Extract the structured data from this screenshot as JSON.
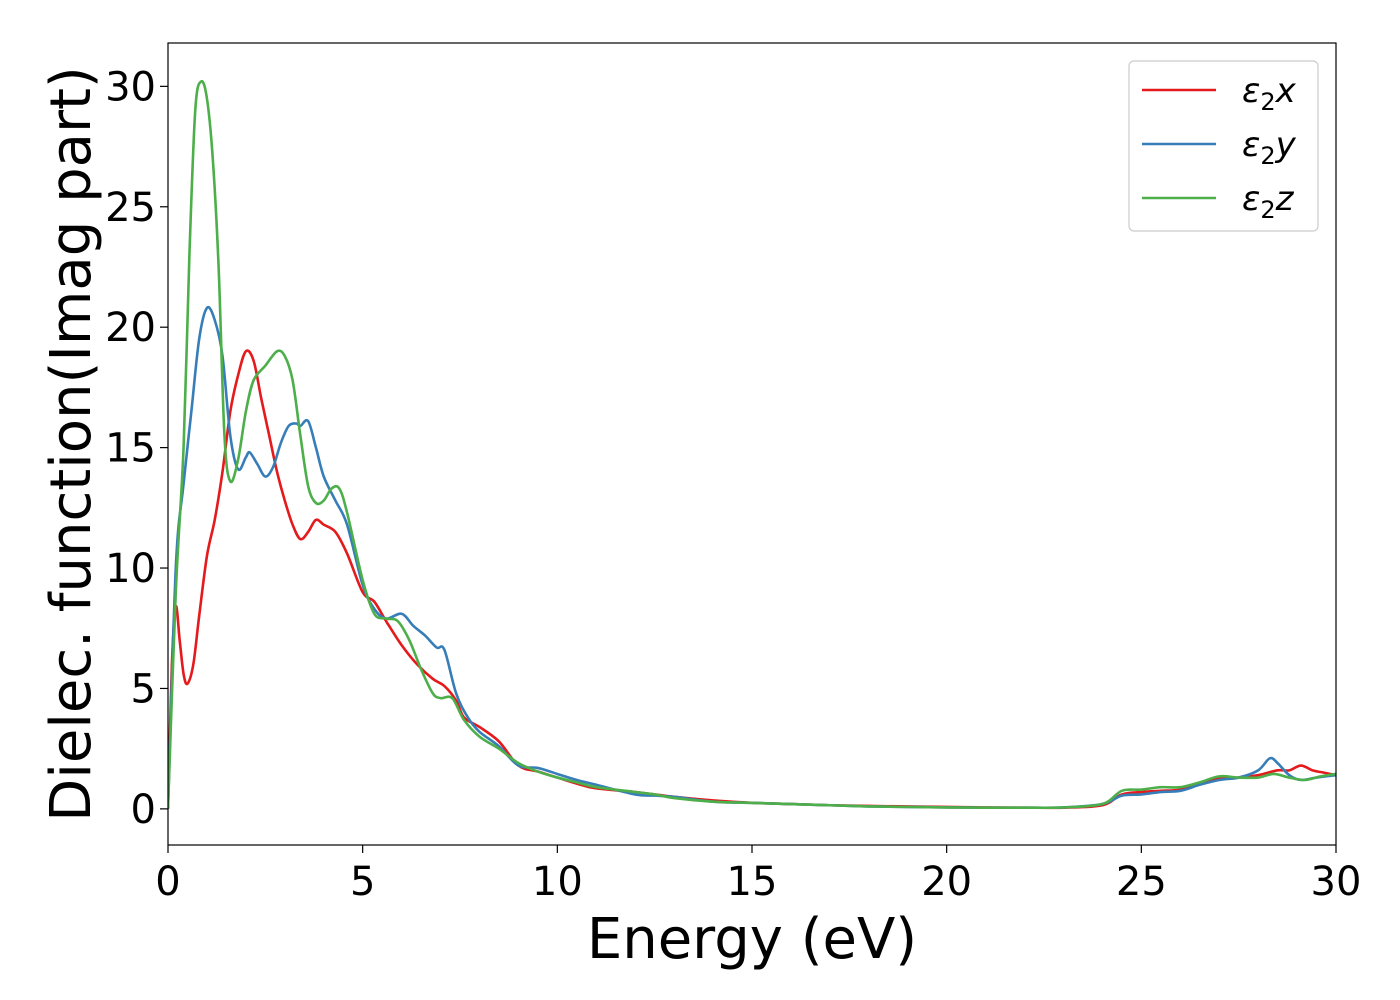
{
  "chart_data": {
    "type": "line",
    "title": "",
    "xlabel": "Energy (eV)",
    "ylabel": "Dielec. function(Imag part)",
    "xlim": [
      0,
      30
    ],
    "ylim": [
      -1.5,
      31.8
    ],
    "xticks": [
      0,
      5,
      10,
      15,
      20,
      25,
      30
    ],
    "yticks": [
      0,
      5,
      10,
      15,
      20,
      25,
      30
    ],
    "grid": false,
    "legend_position": "top-right",
    "series": [
      {
        "name": "ε2x",
        "legend_base": "ε",
        "legend_sub": "2",
        "legend_var": "x",
        "color": "#e41a1c",
        "points": [
          [
            0,
            0
          ],
          [
            0.1,
            6
          ],
          [
            0.2,
            8.4
          ],
          [
            0.3,
            7
          ],
          [
            0.4,
            5.6
          ],
          [
            0.5,
            5.2
          ],
          [
            0.65,
            6
          ],
          [
            0.8,
            8
          ],
          [
            1.0,
            10.5
          ],
          [
            1.2,
            12
          ],
          [
            1.4,
            14
          ],
          [
            1.6,
            16.5
          ],
          [
            1.8,
            18
          ],
          [
            2.0,
            19
          ],
          [
            2.2,
            18.6
          ],
          [
            2.4,
            17
          ],
          [
            2.6,
            15.5
          ],
          [
            2.8,
            14
          ],
          [
            3.0,
            12.8
          ],
          [
            3.2,
            11.8
          ],
          [
            3.4,
            11.2
          ],
          [
            3.6,
            11.5
          ],
          [
            3.8,
            12
          ],
          [
            4.0,
            11.8
          ],
          [
            4.3,
            11.5
          ],
          [
            4.6,
            10.6
          ],
          [
            5.0,
            9
          ],
          [
            5.3,
            8.6
          ],
          [
            5.6,
            7.8
          ],
          [
            6.0,
            6.8
          ],
          [
            6.4,
            6
          ],
          [
            6.8,
            5.4
          ],
          [
            7.1,
            5.1
          ],
          [
            7.4,
            4.5
          ],
          [
            7.6,
            3.8
          ],
          [
            8.0,
            3.4
          ],
          [
            8.5,
            2.8
          ],
          [
            9.0,
            1.8
          ],
          [
            9.5,
            1.55
          ],
          [
            10,
            1.3
          ],
          [
            10.5,
            1.05
          ],
          [
            11,
            0.85
          ],
          [
            12,
            0.7
          ],
          [
            13,
            0.5
          ],
          [
            14,
            0.35
          ],
          [
            15,
            0.25
          ],
          [
            16,
            0.2
          ],
          [
            17,
            0.15
          ],
          [
            18,
            0.12
          ],
          [
            19,
            0.1
          ],
          [
            20,
            0.08
          ],
          [
            21,
            0.06
          ],
          [
            22,
            0.05
          ],
          [
            23,
            0.05
          ],
          [
            24,
            0.15
          ],
          [
            24.5,
            0.6
          ],
          [
            25,
            0.7
          ],
          [
            25.5,
            0.75
          ],
          [
            26,
            0.8
          ],
          [
            26.5,
            1.05
          ],
          [
            27,
            1.3
          ],
          [
            27.5,
            1.3
          ],
          [
            28,
            1.4
          ],
          [
            28.5,
            1.6
          ],
          [
            28.8,
            1.6
          ],
          [
            29.1,
            1.8
          ],
          [
            29.4,
            1.6
          ],
          [
            29.7,
            1.5
          ],
          [
            30,
            1.4
          ]
        ]
      },
      {
        "name": "ε2y",
        "legend_base": "ε",
        "legend_sub": "2",
        "legend_var": "y",
        "color": "#377eb8",
        "points": [
          [
            0,
            0
          ],
          [
            0.2,
            10
          ],
          [
            0.4,
            13.5
          ],
          [
            0.6,
            16.5
          ],
          [
            0.8,
            19.5
          ],
          [
            1.0,
            20.8
          ],
          [
            1.2,
            20.3
          ],
          [
            1.4,
            18.8
          ],
          [
            1.6,
            15.5
          ],
          [
            1.8,
            14.1
          ],
          [
            2.0,
            14.6
          ],
          [
            2.1,
            14.8
          ],
          [
            2.3,
            14.3
          ],
          [
            2.5,
            13.8
          ],
          [
            2.7,
            14.2
          ],
          [
            2.9,
            15.2
          ],
          [
            3.1,
            15.9
          ],
          [
            3.3,
            16
          ],
          [
            3.4,
            15.9
          ],
          [
            3.6,
            16.1
          ],
          [
            3.8,
            15
          ],
          [
            4.0,
            13.8
          ],
          [
            4.3,
            12.8
          ],
          [
            4.6,
            11.8
          ],
          [
            5.0,
            9.3
          ],
          [
            5.3,
            8.3
          ],
          [
            5.6,
            7.9
          ],
          [
            6.0,
            8.1
          ],
          [
            6.3,
            7.6
          ],
          [
            6.6,
            7.2
          ],
          [
            6.9,
            6.7
          ],
          [
            7.1,
            6.6
          ],
          [
            7.4,
            4.8
          ],
          [
            7.7,
            3.8
          ],
          [
            8.0,
            3.2
          ],
          [
            8.5,
            2.6
          ],
          [
            9.0,
            1.8
          ],
          [
            9.5,
            1.7
          ],
          [
            10,
            1.45
          ],
          [
            10.5,
            1.2
          ],
          [
            11,
            1
          ],
          [
            12,
            0.6
          ],
          [
            12.5,
            0.55
          ],
          [
            13,
            0.5
          ],
          [
            14,
            0.3
          ],
          [
            15,
            0.25
          ],
          [
            16,
            0.2
          ],
          [
            17,
            0.15
          ],
          [
            18,
            0.1
          ],
          [
            19,
            0.08
          ],
          [
            20,
            0.06
          ],
          [
            21,
            0.05
          ],
          [
            22,
            0.05
          ],
          [
            23,
            0.06
          ],
          [
            24,
            0.2
          ],
          [
            24.5,
            0.55
          ],
          [
            25,
            0.6
          ],
          [
            25.5,
            0.7
          ],
          [
            26,
            0.75
          ],
          [
            26.5,
            1
          ],
          [
            27,
            1.2
          ],
          [
            27.5,
            1.3
          ],
          [
            28,
            1.6
          ],
          [
            28.3,
            2.1
          ],
          [
            28.5,
            1.9
          ],
          [
            28.8,
            1.4
          ],
          [
            29.1,
            1.2
          ],
          [
            29.5,
            1.3
          ],
          [
            30,
            1.4
          ]
        ]
      },
      {
        "name": "ε2z",
        "legend_base": "ε",
        "legend_sub": "2",
        "legend_var": "z",
        "color": "#4daf4a",
        "points": [
          [
            0,
            0
          ],
          [
            0.2,
            9
          ],
          [
            0.4,
            15
          ],
          [
            0.55,
            23
          ],
          [
            0.7,
            29
          ],
          [
            0.85,
            30.2
          ],
          [
            1.0,
            29.5
          ],
          [
            1.15,
            27
          ],
          [
            1.3,
            22.5
          ],
          [
            1.45,
            15.5
          ],
          [
            1.6,
            13.6
          ],
          [
            1.8,
            14.5
          ],
          [
            2.0,
            16.5
          ],
          [
            2.2,
            17.8
          ],
          [
            2.5,
            18.4
          ],
          [
            2.8,
            19
          ],
          [
            3.0,
            18.8
          ],
          [
            3.2,
            17.8
          ],
          [
            3.4,
            15.5
          ],
          [
            3.6,
            13.4
          ],
          [
            3.8,
            12.7
          ],
          [
            4.0,
            12.8
          ],
          [
            4.2,
            13.3
          ],
          [
            4.4,
            13.3
          ],
          [
            4.6,
            12.3
          ],
          [
            5.0,
            9.5
          ],
          [
            5.3,
            8.1
          ],
          [
            5.6,
            7.9
          ],
          [
            5.9,
            7.8
          ],
          [
            6.2,
            7
          ],
          [
            6.5,
            5.8
          ],
          [
            6.8,
            4.8
          ],
          [
            7.0,
            4.6
          ],
          [
            7.3,
            4.6
          ],
          [
            7.6,
            3.7
          ],
          [
            8.0,
            3
          ],
          [
            8.5,
            2.5
          ],
          [
            9.0,
            1.9
          ],
          [
            9.5,
            1.55
          ],
          [
            10,
            1.3
          ],
          [
            10.5,
            1.1
          ],
          [
            11,
            0.9
          ],
          [
            12,
            0.7
          ],
          [
            12.5,
            0.6
          ],
          [
            13,
            0.45
          ],
          [
            14,
            0.3
          ],
          [
            15,
            0.25
          ],
          [
            16,
            0.2
          ],
          [
            17,
            0.15
          ],
          [
            18,
            0.1
          ],
          [
            19,
            0.08
          ],
          [
            20,
            0.06
          ],
          [
            21,
            0.05
          ],
          [
            22,
            0.05
          ],
          [
            23,
            0.06
          ],
          [
            24,
            0.2
          ],
          [
            24.5,
            0.75
          ],
          [
            25,
            0.8
          ],
          [
            25.5,
            0.9
          ],
          [
            26,
            0.9
          ],
          [
            26.5,
            1.1
          ],
          [
            27,
            1.35
          ],
          [
            27.5,
            1.3
          ],
          [
            28,
            1.3
          ],
          [
            28.4,
            1.45
          ],
          [
            28.8,
            1.3
          ],
          [
            29.2,
            1.2
          ],
          [
            29.6,
            1.35
          ],
          [
            30,
            1.45
          ]
        ]
      }
    ]
  }
}
